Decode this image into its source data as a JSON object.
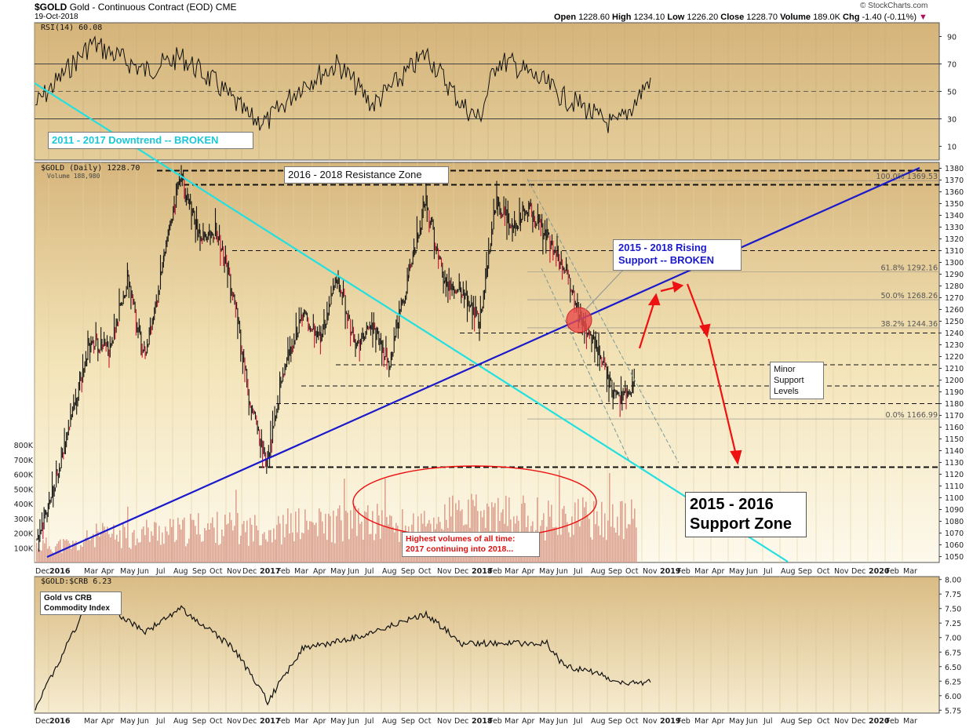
{
  "header": {
    "symbol": "$GOLD",
    "description": "Gold - Continuous Contract (EOD)",
    "exchange": "CME",
    "date": "19-Oct-2018",
    "open_label": "Open",
    "open": "1228.60",
    "high_label": "High",
    "high": "1234.10",
    "low_label": "Low",
    "low": "1226.20",
    "close_label": "Close",
    "close": "1228.70",
    "volume_label": "Volume",
    "volume": "189.0K",
    "chg_label": "Chg",
    "chg": "-1.40 (-0.11%)",
    "source": "© StockCharts.com"
  },
  "rsi_panel": {
    "label": "RSI(14) 60.08",
    "ticks": [
      "90",
      "70",
      "50",
      "30",
      "10"
    ]
  },
  "price_panel": {
    "label": "$GOLD (Daily) 1228.70",
    "volume_label": "Volume 188,980",
    "ticks": [
      "1380",
      "1370",
      "1360",
      "1350",
      "1340",
      "1330",
      "1320",
      "1310",
      "1300",
      "1290",
      "1280",
      "1270",
      "1260",
      "1250",
      "1240",
      "1230",
      "1220",
      "1210",
      "1200",
      "1190",
      "1180",
      "1170",
      "1160",
      "1150",
      "1140",
      "1130",
      "1120",
      "1110",
      "1100",
      "1090",
      "1080",
      "1070",
      "1060",
      "1050"
    ],
    "volume_ticks": [
      "800K",
      "700K",
      "600K",
      "500K",
      "400K",
      "300K",
      "200K",
      "100K"
    ],
    "fib_labels": [
      "100.0% 1369.53",
      "61.8% 1292.16",
      "50.0% 1268.26",
      "38.2% 1244.36",
      "0.0% 1166.99"
    ],
    "annotations": {
      "downtrend": "2011 - 2017 Downtrend -- BROKEN",
      "resistance": "2016 - 2018 Resistance Zone",
      "rising_support_1": "2015 - 2018 Rising",
      "rising_support_2": "Support -- BROKEN",
      "minor_1": "Minor",
      "minor_2": "Support",
      "minor_3": "Levels",
      "support_zone_1": "2015 - 2016",
      "support_zone_2": "Support Zone",
      "volume_1": "Highest volumes of all time:",
      "volume_2": "2017 continuing into 2018..."
    }
  },
  "ratio_panel": {
    "label": "$GOLD:$CRB 6.23",
    "note_1": "Gold vs CRB",
    "note_2": "Commodity Index",
    "ticks": [
      "8.00",
      "7.75",
      "7.50",
      "7.25",
      "7.00",
      "6.75",
      "6.50",
      "6.25",
      "6.00",
      "5.75"
    ]
  },
  "x_axis": {
    "months": [
      "Dec",
      "2016",
      "Mar",
      "Apr",
      "May",
      "Jun",
      "Jul",
      "Aug",
      "Sep",
      "Oct",
      "Nov",
      "Dec",
      "2017",
      "Feb",
      "Mar",
      "Apr",
      "May",
      "Jun",
      "Jul",
      "Aug",
      "Sep",
      "Oct",
      "Nov",
      "Dec",
      "2018",
      "Feb",
      "Mar",
      "Apr",
      "May",
      "Jun",
      "Jul",
      "Aug",
      "Sep",
      "Oct",
      "Nov",
      "2019",
      "Feb",
      "Mar",
      "Apr",
      "May",
      "Jun",
      "Jul",
      "Aug",
      "Sep",
      "Oct",
      "Nov",
      "Dec",
      "2020",
      "Feb",
      "Mar"
    ]
  },
  "colors": {
    "panel_bg_top": "#d9b980",
    "panel_bg_bottom": "#fbf6e6",
    "price_up": "#111111",
    "price_down": "#cc1133",
    "downtrend": "#22e0e0",
    "rising_support": "#1a1acc",
    "projection": "#ee1111",
    "volume_bar": "#d99a8a"
  },
  "chart_data": [
    {
      "type": "line",
      "name": "RSI(14)",
      "ylim": [
        0,
        100
      ],
      "levels": [
        70,
        50,
        30
      ],
      "x": [
        "2015-12",
        "2016-02",
        "2016-05",
        "2016-07",
        "2016-09",
        "2016-11",
        "2016-12",
        "2017-02",
        "2017-04",
        "2017-06",
        "2017-08",
        "2017-09",
        "2017-11",
        "2017-12",
        "2018-01",
        "2018-02",
        "2018-04",
        "2018-05",
        "2018-06",
        "2018-07",
        "2018-08",
        "2018-09",
        "2018-10"
      ],
      "values": [
        40,
        85,
        65,
        75,
        55,
        30,
        28,
        55,
        70,
        40,
        65,
        78,
        40,
        30,
        72,
        70,
        55,
        45,
        40,
        30,
        25,
        40,
        60
      ]
    },
    {
      "type": "line",
      "name": "$GOLD (Daily)",
      "ylim": [
        1045,
        1385
      ],
      "x": [
        "2015-12",
        "2016-01",
        "2016-02",
        "2016-03",
        "2016-04",
        "2016-05",
        "2016-06",
        "2016-07",
        "2016-08",
        "2016-09",
        "2016-10",
        "2016-11",
        "2016-12",
        "2017-01",
        "2017-02",
        "2017-03",
        "2017-04",
        "2017-05",
        "2017-06",
        "2017-07",
        "2017-08",
        "2017-09",
        "2017-10",
        "2017-11",
        "2017-12",
        "2018-01",
        "2018-02",
        "2018-03",
        "2018-04",
        "2018-05",
        "2018-06",
        "2018-07",
        "2018-08",
        "2018-09",
        "2018-10"
      ],
      "values": [
        1062,
        1118,
        1236,
        1225,
        1285,
        1220,
        1300,
        1372,
        1322,
        1328,
        1268,
        1178,
        1128,
        1212,
        1255,
        1235,
        1290,
        1228,
        1245,
        1215,
        1288,
        1352,
        1282,
        1278,
        1248,
        1355,
        1330,
        1345,
        1322,
        1298,
        1250,
        1225,
        1182,
        1195,
        1229
      ],
      "close": 1228.7,
      "levels": [
        {
          "name": "resistance",
          "value": 1378
        },
        {
          "name": "resistance",
          "value": 1366
        },
        {
          "name": "support",
          "value": 1310
        },
        {
          "name": "support",
          "value": 1240
        },
        {
          "name": "support",
          "value": 1213
        },
        {
          "name": "support",
          "value": 1195
        },
        {
          "name": "support",
          "value": 1180
        },
        {
          "name": "support-zone",
          "value": 1126
        }
      ],
      "fibonacci": [
        {
          "label": "100.0%",
          "value": 1369.53
        },
        {
          "label": "61.8%",
          "value": 1292.16
        },
        {
          "label": "50.0%",
          "value": 1268.26
        },
        {
          "label": "38.2%",
          "value": 1244.36
        },
        {
          "label": "0.0%",
          "value": 1166.99
        }
      ]
    },
    {
      "type": "bar",
      "name": "Volume",
      "ylim": [
        0,
        800000
      ],
      "x": [
        "2016-Q1",
        "2016-Q2",
        "2016-Q3",
        "2016-Q4",
        "2017-Q1",
        "2017-Q2",
        "2017-Q3",
        "2017-Q4",
        "2018-Q1",
        "2018-Q2",
        "2018-Q3",
        "2018-Q4"
      ],
      "values": [
        130000,
        200000,
        230000,
        260000,
        250000,
        280000,
        300000,
        270000,
        350000,
        340000,
        330000,
        320000
      ]
    },
    {
      "type": "line",
      "name": "$GOLD:$CRB",
      "ylim": [
        5.7,
        8.05
      ],
      "x": [
        "2015-12",
        "2016-02",
        "2016-05",
        "2016-07",
        "2016-10",
        "2016-12",
        "2017-02",
        "2017-05",
        "2017-08",
        "2017-09",
        "2017-11",
        "2018-01",
        "2018-04",
        "2018-05",
        "2018-07",
        "2018-08",
        "2018-10"
      ],
      "values": [
        5.8,
        7.7,
        7.1,
        7.5,
        6.8,
        5.9,
        6.8,
        7.0,
        7.3,
        7.4,
        6.9,
        6.9,
        6.9,
        6.5,
        6.4,
        6.2,
        6.23
      ]
    }
  ]
}
